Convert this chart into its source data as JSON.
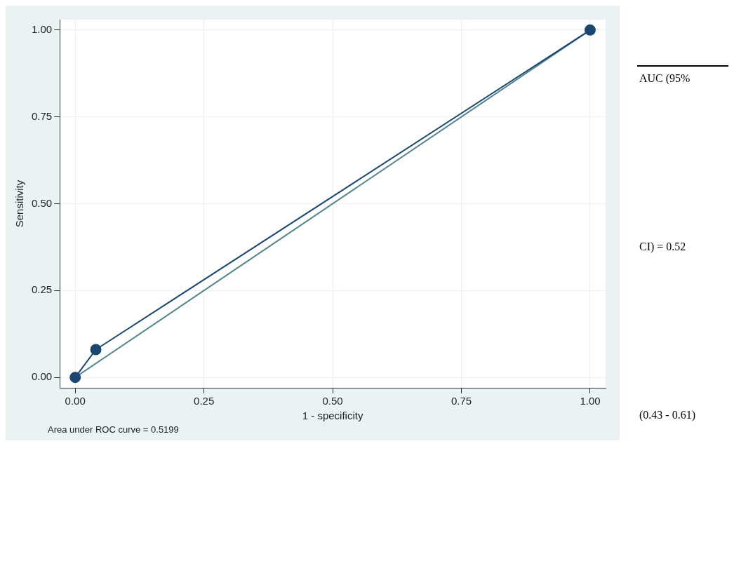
{
  "chart_data": {
    "type": "line",
    "xlabel": "1 - specificity",
    "ylabel": "Sensitivity",
    "xlim": [
      -0.03,
      1.03
    ],
    "xticks": [
      {
        "value": 0,
        "label": "0.00"
      },
      {
        "value": 0.25,
        "label": "0.25"
      },
      {
        "value": 0.5,
        "label": "0.50"
      },
      {
        "value": 0.75,
        "label": "0.75"
      },
      {
        "value": 1,
        "label": "1.00"
      }
    ],
    "ylim": [
      -0.03,
      1.03
    ],
    "yticks": [
      {
        "value": 0,
        "label": "0.00"
      },
      {
        "value": 0.25,
        "label": "0.25"
      },
      {
        "value": 0.5,
        "label": "0.50"
      },
      {
        "value": 0.75,
        "label": "0.75"
      },
      {
        "value": 1,
        "label": "1.00"
      }
    ],
    "grid": true,
    "legend": false,
    "series": [
      {
        "marker": "circle",
        "color": "#1a476f",
        "x": [
          0,
          0.04,
          1
        ],
        "values": [
          0,
          0.08,
          1
        ]
      },
      {
        "marker": "none",
        "color": "#55868c",
        "x": [
          0,
          1
        ],
        "values": [
          0,
          1
        ]
      }
    ],
    "annotations": [
      "Area under ROC curve = 0.5199",
      "AUC (95%",
      "CI) = 0.52",
      "(0.43 - 0.61)"
    ]
  }
}
